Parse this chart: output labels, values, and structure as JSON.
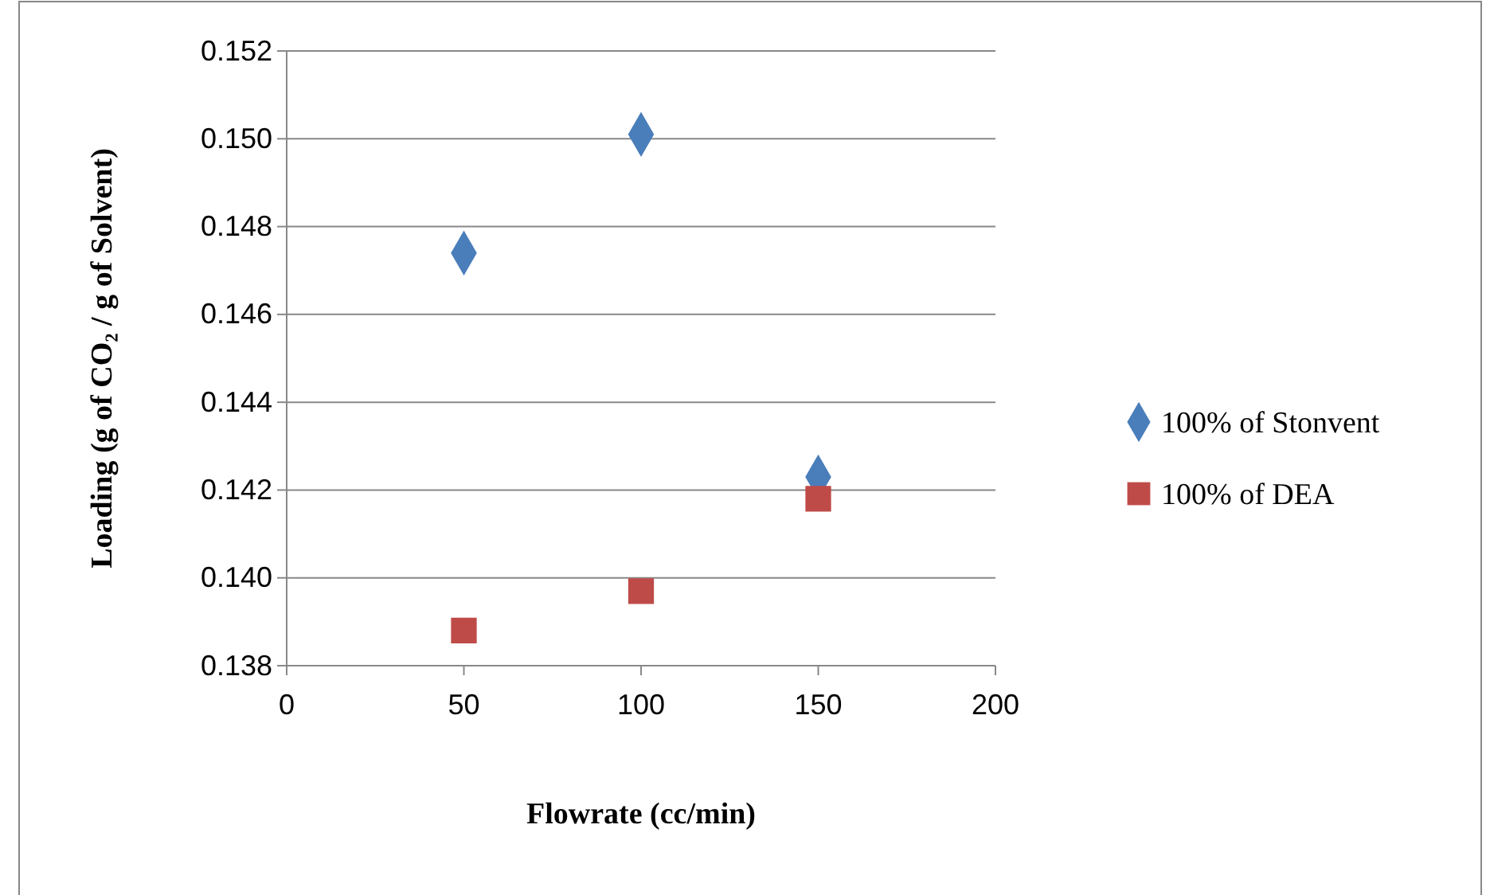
{
  "chart_data": {
    "type": "scatter",
    "xlabel": "Flowrate (cc/min)",
    "ylabel": "Loading (g of CO₂  / g of Solvent)",
    "xlim": [
      0,
      200
    ],
    "xticks": [
      0,
      50,
      100,
      150,
      200
    ],
    "ylim": [
      0.138,
      0.152
    ],
    "yticks": [
      0.138,
      {
        "value": 0.14,
        "label": "0.140"
      },
      0.142,
      0.144,
      0.146,
      0.148,
      {
        "value": 0.15,
        "label": "0.150"
      },
      0.152
    ],
    "grid": "y",
    "legend": "right",
    "series": [
      {
        "name": "100% of Stonvent",
        "color": "#4a7ebb",
        "marker": "diamond",
        "x": [
          50,
          100,
          150
        ],
        "values": [
          0.1474,
          0.1501,
          0.1423
        ]
      },
      {
        "name": "100% of DEA",
        "color": "#be4b48",
        "marker": "square",
        "x": [
          50,
          100,
          150
        ],
        "values": [
          0.1388,
          0.1397,
          0.1418
        ]
      }
    ]
  }
}
